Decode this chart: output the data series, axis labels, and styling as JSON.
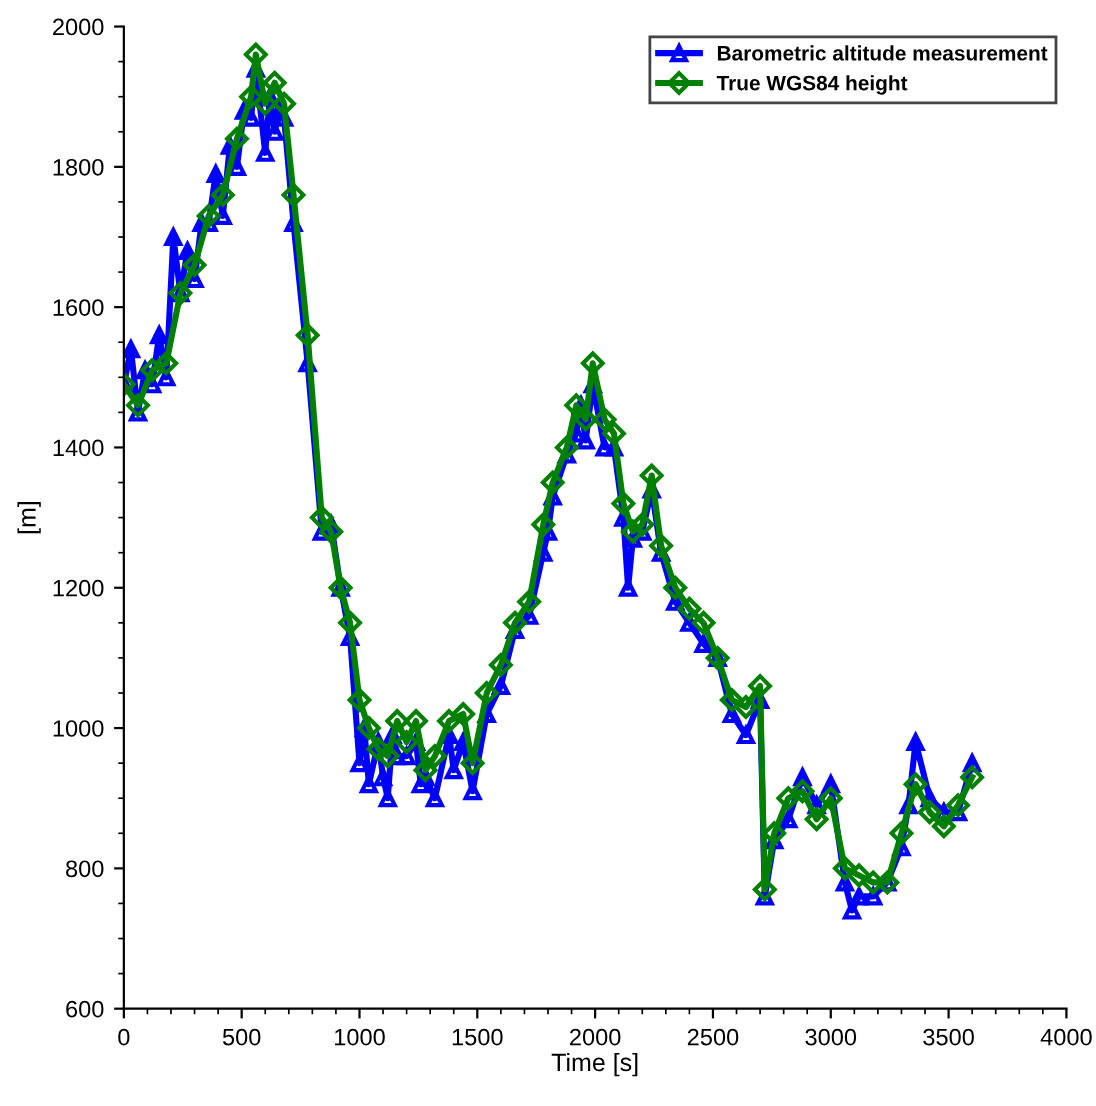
{
  "chart_data": {
    "type": "line",
    "xlabel": "Time [s]",
    "ylabel": "[m]",
    "xlim": [
      0,
      4000
    ],
    "ylim": [
      600,
      2000
    ],
    "xticks": [
      0,
      500,
      1000,
      1500,
      2000,
      2500,
      3000,
      3500,
      4000
    ],
    "yticks": [
      600,
      800,
      1000,
      1200,
      1400,
      1600,
      1800,
      2000
    ],
    "grid": false,
    "legend": "top right",
    "line_style": "solid",
    "series": [
      {
        "name": "Barometric altitude measurement",
        "color": "#0000ff",
        "marker": "triangle",
        "x": [
          0,
          30,
          60,
          90,
          120,
          150,
          180,
          210,
          240,
          270,
          300,
          330,
          360,
          390,
          420,
          450,
          480,
          510,
          540,
          560,
          600,
          620,
          640,
          660,
          680,
          720,
          780,
          840,
          880,
          920,
          960,
          1000,
          1020,
          1040,
          1080,
          1100,
          1120,
          1140,
          1160,
          1200,
          1240,
          1260,
          1280,
          1320,
          1380,
          1400,
          1440,
          1480,
          1540,
          1600,
          1660,
          1720,
          1780,
          1800,
          1820,
          1880,
          1920,
          1940,
          1960,
          1990,
          2040,
          2080,
          2120,
          2140,
          2160,
          2200,
          2240,
          2280,
          2340,
          2400,
          2460,
          2520,
          2580,
          2640,
          2700,
          2720,
          2760,
          2820,
          2880,
          2940,
          3000,
          3060,
          3090,
          3120,
          3180,
          3240,
          3300,
          3330,
          3360,
          3420,
          3480,
          3540,
          3600
        ],
        "values": [
          1490,
          1540,
          1450,
          1510,
          1490,
          1560,
          1500,
          1700,
          1620,
          1680,
          1640,
          1720,
          1720,
          1790,
          1730,
          1830,
          1800,
          1880,
          1870,
          1940,
          1820,
          1900,
          1850,
          1880,
          1870,
          1720,
          1520,
          1280,
          1290,
          1200,
          1130,
          950,
          1000,
          920,
          980,
          930,
          900,
          990,
          960,
          960,
          980,
          920,
          930,
          900,
          990,
          940,
          980,
          910,
          1020,
          1060,
          1140,
          1160,
          1250,
          1280,
          1330,
          1390,
          1420,
          1460,
          1410,
          1490,
          1400,
          1400,
          1300,
          1200,
          1270,
          1280,
          1340,
          1250,
          1180,
          1150,
          1120,
          1100,
          1020,
          990,
          1040,
          760,
          840,
          870,
          930,
          890,
          920,
          780,
          740,
          760,
          760,
          780,
          830,
          890,
          980,
          900,
          880,
          880,
          950
        ]
      },
      {
        "name": "True WGS84 height",
        "color": "#008000",
        "marker": "diamond",
        "x": [
          0,
          60,
          120,
          180,
          240,
          300,
          360,
          420,
          480,
          540,
          560,
          600,
          640,
          680,
          720,
          780,
          840,
          880,
          920,
          960,
          1000,
          1040,
          1080,
          1120,
          1160,
          1200,
          1240,
          1280,
          1320,
          1380,
          1440,
          1480,
          1540,
          1600,
          1660,
          1720,
          1780,
          1820,
          1880,
          1920,
          1960,
          1990,
          2040,
          2080,
          2120,
          2160,
          2200,
          2240,
          2280,
          2340,
          2400,
          2460,
          2520,
          2580,
          2640,
          2700,
          2720,
          2760,
          2820,
          2880,
          2940,
          3000,
          3060,
          3120,
          3180,
          3240,
          3300,
          3360,
          3420,
          3480,
          3540,
          3600
        ],
        "values": [
          1490,
          1460,
          1510,
          1520,
          1620,
          1660,
          1730,
          1760,
          1840,
          1900,
          1960,
          1890,
          1920,
          1890,
          1760,
          1560,
          1300,
          1280,
          1200,
          1150,
          1040,
          1000,
          970,
          960,
          1010,
          980,
          1010,
          940,
          960,
          1010,
          1020,
          950,
          1050,
          1090,
          1150,
          1180,
          1290,
          1350,
          1400,
          1460,
          1440,
          1520,
          1440,
          1420,
          1320,
          1280,
          1290,
          1360,
          1260,
          1200,
          1170,
          1150,
          1100,
          1040,
          1030,
          1060,
          770,
          850,
          900,
          910,
          870,
          900,
          800,
          790,
          780,
          780,
          850,
          920,
          880,
          860,
          890,
          930
        ]
      }
    ]
  }
}
